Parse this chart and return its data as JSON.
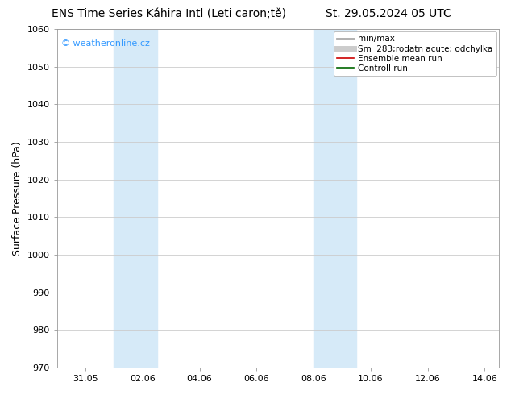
{
  "title_left": "ENS Time Series Káhira Intl (Leti caron;tě)",
  "title_right": "St. 29.05.2024 05 UTC",
  "ylabel": "Surface Pressure (hPa)",
  "ylim": [
    970,
    1060
  ],
  "yticks": [
    970,
    980,
    990,
    1000,
    1010,
    1020,
    1030,
    1040,
    1050,
    1060
  ],
  "xtick_labels": [
    "31.05",
    "02.06",
    "04.06",
    "06.06",
    "08.06",
    "10.06",
    "12.06",
    "14.06"
  ],
  "xtick_days_from_start": [
    1,
    3,
    5,
    7,
    9,
    11,
    13,
    15
  ],
  "xlim": [
    0,
    15.5
  ],
  "shade_bands": [
    {
      "x_start": 2.0,
      "x_end": 3.5
    },
    {
      "x_start": 9.0,
      "x_end": 10.5
    }
  ],
  "shade_color": "#d6eaf8",
  "watermark_text": "© weatheronline.cz",
  "watermark_color": "#3399ff",
  "legend_entries": [
    {
      "label": "min/max",
      "color": "#aaaaaa",
      "lw": 2.0,
      "style": "solid"
    },
    {
      "label": "Sm  283;rodatn acute; odchylka",
      "color": "#cccccc",
      "lw": 5,
      "style": "solid"
    },
    {
      "label": "Ensemble mean run",
      "color": "#cc0000",
      "lw": 1.2,
      "style": "solid"
    },
    {
      "label": "Controll run",
      "color": "#006600",
      "lw": 1.2,
      "style": "solid"
    }
  ],
  "bg_color": "#ffffff",
  "grid_color": "#cccccc",
  "title_fontsize": 10,
  "label_fontsize": 9,
  "tick_fontsize": 8,
  "legend_fontsize": 7.5
}
